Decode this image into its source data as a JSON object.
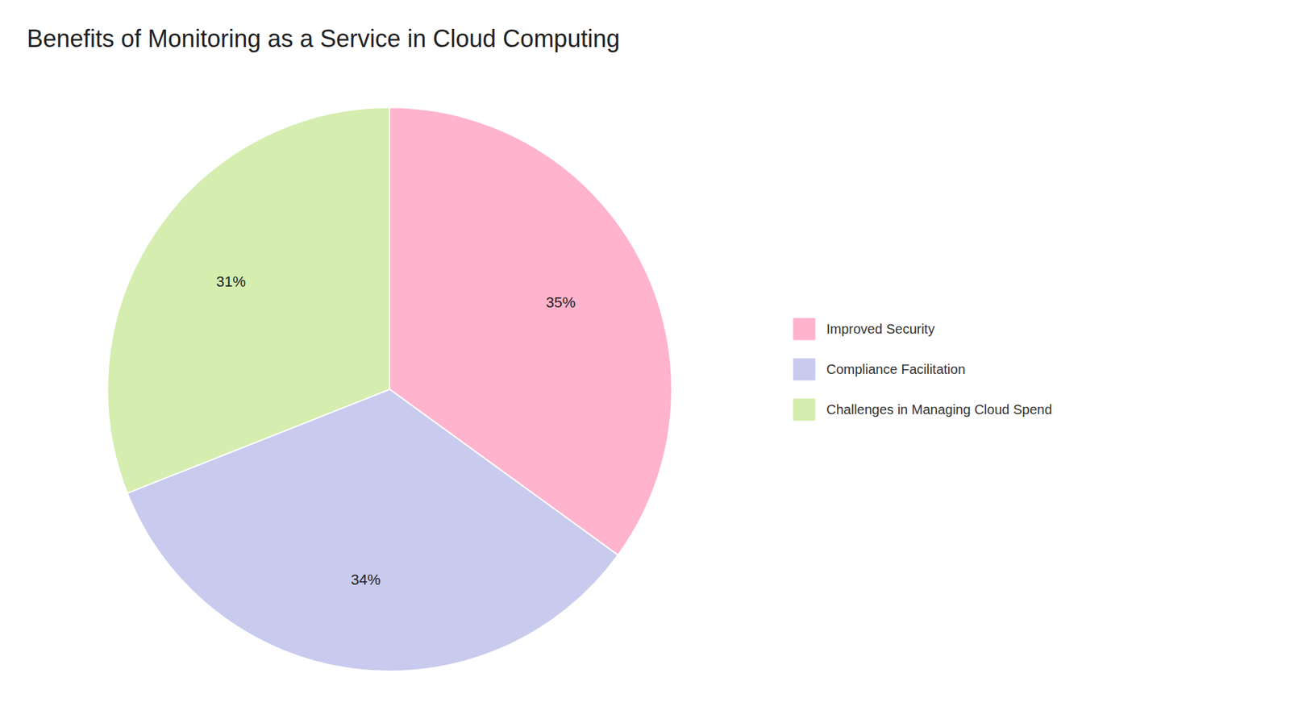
{
  "chart_data": {
    "type": "pie",
    "title": "Benefits of Monitoring as a Service in Cloud Computing",
    "categories": [
      "Improved Security",
      "Compliance Facilitation",
      "Challenges in Managing Cloud Spend"
    ],
    "values": [
      35,
      34,
      31
    ],
    "value_labels": [
      "35%",
      "34%",
      "31%"
    ],
    "colors": [
      "#FFB3CC",
      "#C8CAEE",
      "#D5EDAF"
    ],
    "data_labels": true,
    "legend": "right"
  }
}
